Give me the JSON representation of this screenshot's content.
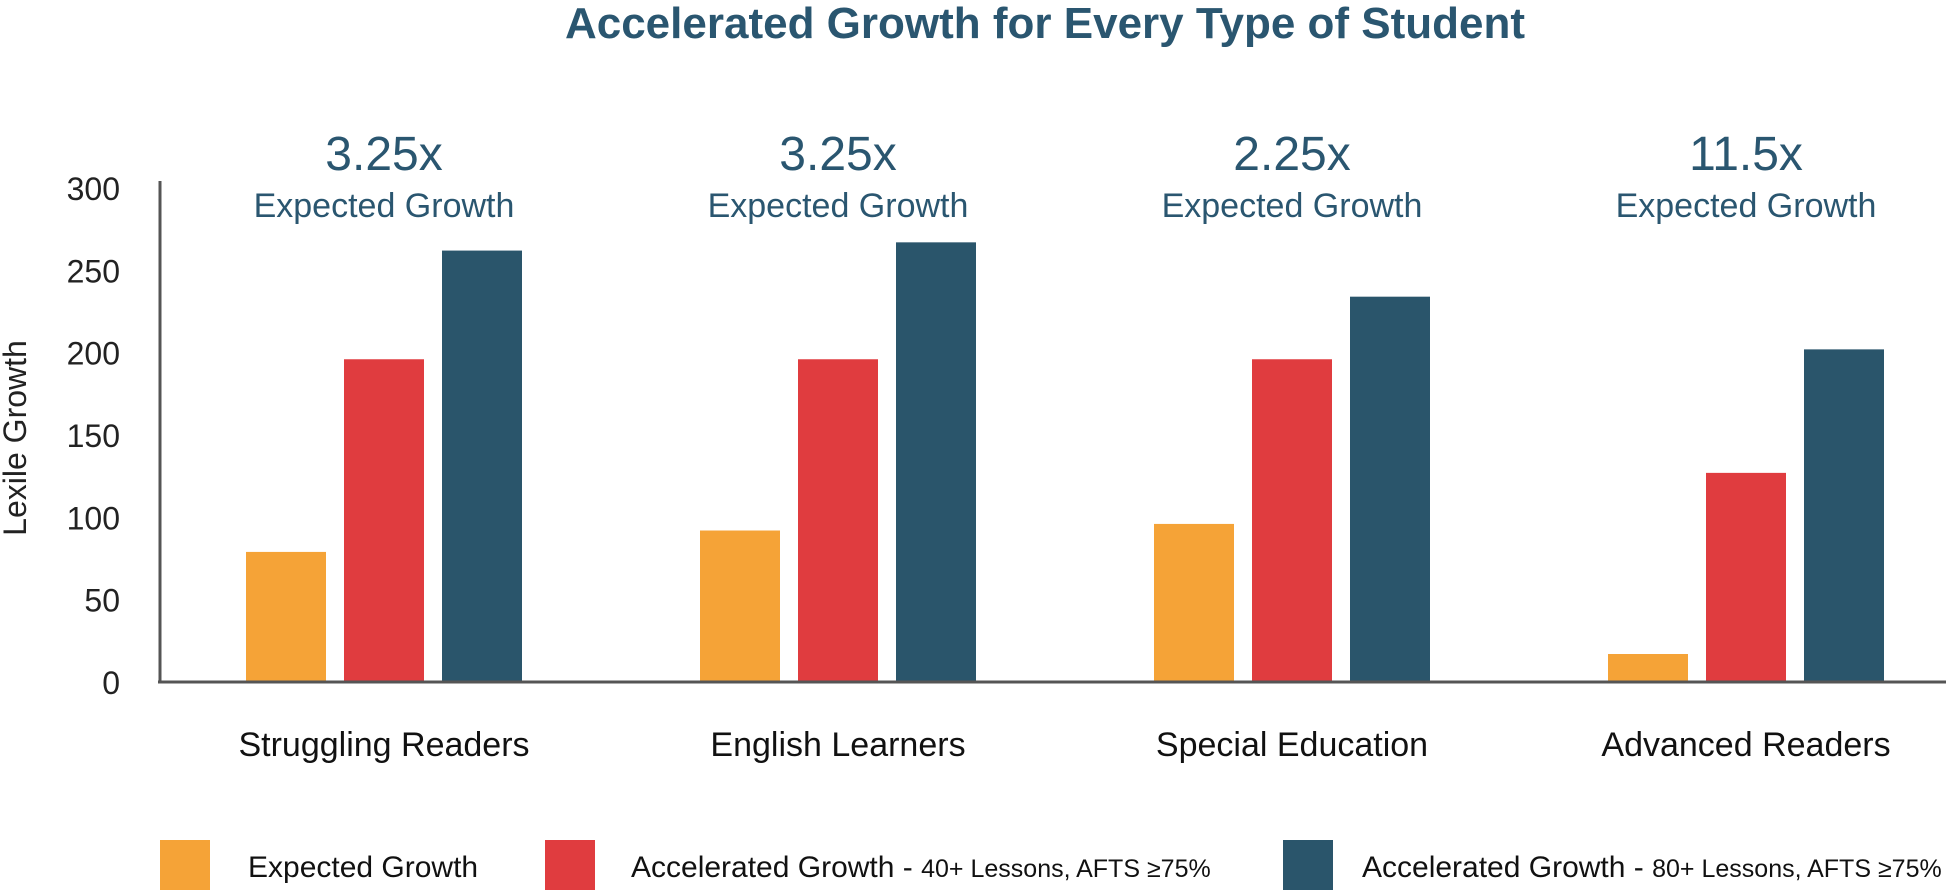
{
  "chart_data": {
    "type": "bar",
    "title": "Accelerated Growth for Every Type of Student",
    "xlabel": "",
    "ylabel": "Lexile Growth",
    "ylim": [
      0,
      300
    ],
    "yticks": [
      "0",
      "50",
      "100",
      "150",
      "200",
      "250",
      "300"
    ],
    "categories": [
      "Struggling Readers",
      "English Learners",
      "Special Education",
      "Advanced Readers"
    ],
    "multipliers": [
      "3.25x",
      "3.25x",
      "2.25x",
      "11.5x"
    ],
    "multiplier_sublabel": "Expected Growth",
    "series": [
      {
        "name": "Expected Growth",
        "values": [
          79,
          92,
          96,
          17
        ],
        "color": "#f5a337"
      },
      {
        "name": "Accelerated Growth - 40+ Lessons, AFTS ≥75%",
        "values": [
          196,
          196,
          196,
          127
        ],
        "color": "#e03c3f"
      },
      {
        "name": "Accelerated Growth - 80+ Lessons, AFTS ≥75%",
        "values": [
          262,
          267,
          234,
          202
        ],
        "color": "#2a556b"
      }
    ],
    "legend_position": "bottom",
    "grid": false
  },
  "legend": [
    {
      "main": "Expected Growth",
      "suffix": ""
    },
    {
      "main": "Accelerated Growth - ",
      "suffix": "40+ Lessons, AFTS ≥75%"
    },
    {
      "main": "Accelerated Growth - ",
      "suffix": "80+ Lessons, AFTS ≥75%"
    }
  ]
}
